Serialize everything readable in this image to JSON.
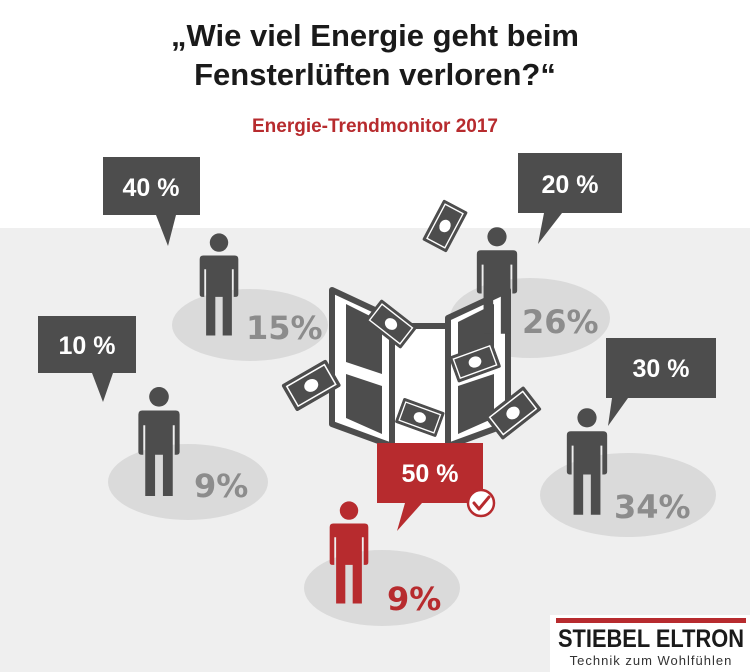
{
  "title_line1": "„Wie viel Energie geht beim",
  "title_line2": "Fensterlüften verloren?“",
  "subtitle": "Energie-Trendmonitor 2017",
  "chart_data": {
    "type": "pictograph",
    "title": "„Wie viel Energie geht beim Fensterlüften verloren?“",
    "subtitle": "Energie-Trendmonitor 2017",
    "unit": "%",
    "categories": [
      "10 %",
      "20 %",
      "30 %",
      "40 %",
      "50 %"
    ],
    "series": [
      {
        "values": [
          9,
          26,
          34,
          15,
          9
        ]
      }
    ],
    "answers": [
      {
        "answer": "10 %",
        "share": 9,
        "share_label": "9%",
        "correct": false
      },
      {
        "answer": "40 %",
        "share": 15,
        "share_label": "15%",
        "correct": false
      },
      {
        "answer": "20 %",
        "share": 26,
        "share_label": "26%",
        "correct": false
      },
      {
        "answer": "30 %",
        "share": 34,
        "share_label": "34%",
        "correct": false
      },
      {
        "answer": "50 %",
        "share": 9,
        "share_label": "9%",
        "correct": true
      }
    ]
  },
  "colors": {
    "dark": "#4d4d4d",
    "accent": "#b72b2e",
    "ellipse": "#dadada",
    "panel": "#efefef",
    "share_grey": "#8c8c8c"
  },
  "icons": [
    "person-icon",
    "speech-bubble-icon",
    "window-icon",
    "banknote-icon",
    "checkmark-icon"
  ],
  "brand": {
    "name": "STIEBEL ELTRON",
    "tagline": "Technik zum Wohlfühlen"
  }
}
